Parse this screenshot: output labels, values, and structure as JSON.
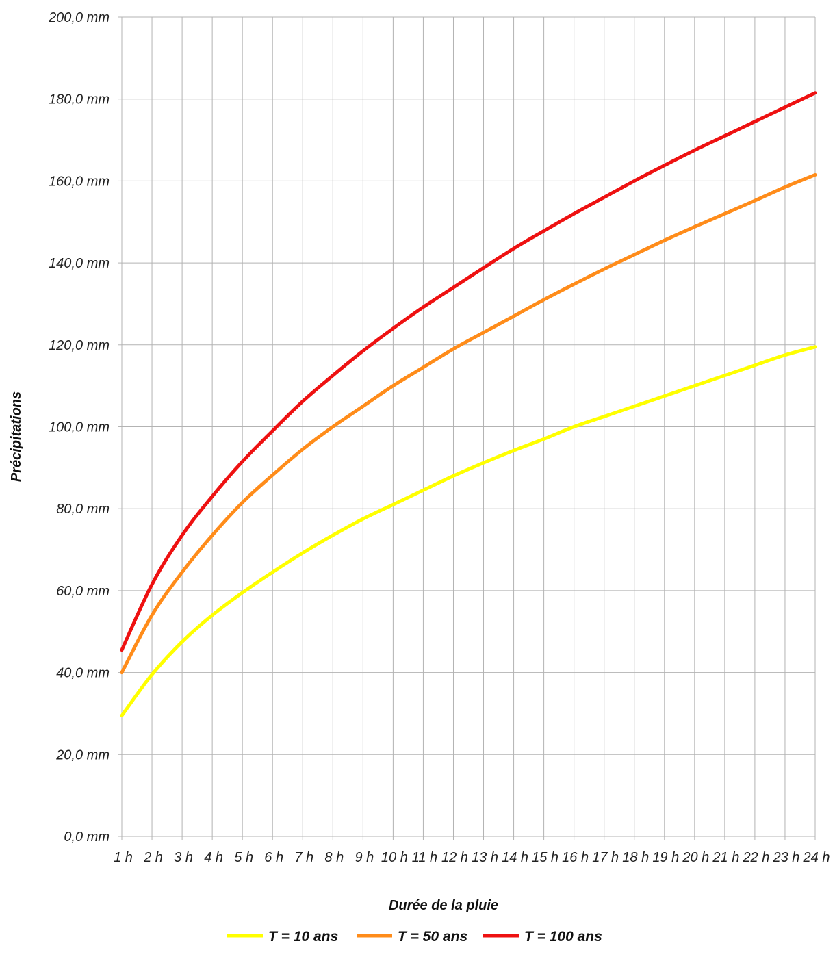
{
  "chart_data": {
    "type": "line",
    "title": "",
    "xlabel": "Durée de la pluie",
    "ylabel": "Précipitations",
    "x": [
      1,
      2,
      3,
      4,
      5,
      6,
      7,
      8,
      9,
      10,
      11,
      12,
      13,
      14,
      15,
      16,
      17,
      18,
      19,
      20,
      21,
      22,
      23,
      24
    ],
    "x_tick_labels": [
      "1 h",
      "2 h",
      "3 h",
      "4 h",
      "5 h",
      "6 h",
      "7 h",
      "8 h",
      "9 h",
      "10 h",
      "11 h",
      "12 h",
      "13 h",
      "14 h",
      "15 h",
      "16 h",
      "17 h",
      "18 h",
      "19 h",
      "20 h",
      "21 h",
      "22 h",
      "23 h",
      "24 h"
    ],
    "y_tick_labels": [
      "0,0 mm",
      "20,0 mm",
      "40,0 mm",
      "60,0 mm",
      "80,0 mm",
      "100,0 mm",
      "120,0 mm",
      "140,0 mm",
      "160,0 mm",
      "180,0 mm",
      "200,0 mm"
    ],
    "ylim": [
      0,
      200
    ],
    "y_ticks": [
      0,
      20,
      40,
      60,
      80,
      100,
      120,
      140,
      160,
      180,
      200
    ],
    "grid": true,
    "legend_position": "bottom",
    "series": [
      {
        "name": "T = 10 ans",
        "color": "#ffff00",
        "values": [
          29.5,
          39.5,
          47.5,
          54.0,
          59.5,
          64.5,
          69.2,
          73.5,
          77.5,
          81.0,
          84.5,
          88.0,
          91.2,
          94.2,
          97.0,
          100.0,
          102.5,
          105.0,
          107.5,
          110.0,
          112.5,
          115.0,
          117.5,
          119.5
        ]
      },
      {
        "name": "T = 50 ans",
        "color": "#ff8c1a",
        "values": [
          40.0,
          54.0,
          64.5,
          73.5,
          81.5,
          88.2,
          94.5,
          100.0,
          105.0,
          110.0,
          114.5,
          119.0,
          123.0,
          127.0,
          131.0,
          134.8,
          138.5,
          142.0,
          145.5,
          148.8,
          152.0,
          155.2,
          158.5,
          161.5
        ]
      },
      {
        "name": "T = 100 ans",
        "color": "#ee1111",
        "values": [
          45.5,
          61.5,
          73.5,
          83.0,
          91.5,
          99.0,
          106.2,
          112.5,
          118.5,
          124.0,
          129.2,
          134.0,
          138.8,
          143.5,
          147.8,
          152.0,
          156.0,
          160.0,
          163.8,
          167.5,
          171.0,
          174.5,
          178.0,
          181.5
        ]
      }
    ]
  }
}
